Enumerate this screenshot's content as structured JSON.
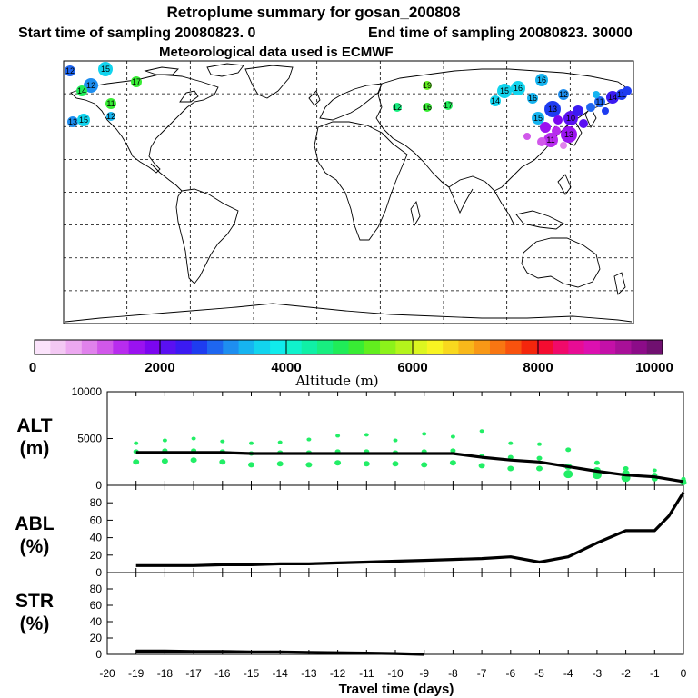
{
  "header": {
    "title": "Retroplume summary for gosan_200808",
    "subtitle_start": "Start time of sampling 20080823.    0",
    "subtitle_end": "End time of sampling 20080823. 30000",
    "met_line": "Meteorological data used is ECMWF"
  },
  "colorbar": {
    "label": "Altitude (m)",
    "tick_labels": [
      "0",
      "2000",
      "4000",
      "6000",
      "8000",
      "10000"
    ],
    "colors": [
      "#fbe3fb",
      "#f3c8f3",
      "#eca8f0",
      "#e082ec",
      "#d158ea",
      "#b82cee",
      "#9a12f0",
      "#7b06f0",
      "#5a10f2",
      "#3b1af2",
      "#1e3cf0",
      "#1e66f0",
      "#1e8ef0",
      "#16b4f0",
      "#12d4ee",
      "#10ecec",
      "#10f2cc",
      "#10f0a6",
      "#18ee80",
      "#20ec58",
      "#38ec34",
      "#62ee1e",
      "#8cf21a",
      "#b4f41c",
      "#dcf620",
      "#f8f422",
      "#f8d81e",
      "#f8b81a",
      "#f89816",
      "#f87612",
      "#f8520e",
      "#f4260c",
      "#f40c30",
      "#f00a6a",
      "#e80c94",
      "#dc10b0",
      "#c410a8",
      "#a81098",
      "#8c0c88",
      "#701070"
    ]
  },
  "map": {
    "markers": [
      "12",
      "15",
      "12",
      "17",
      "16",
      "11",
      "14",
      "12",
      "13",
      "13",
      "15",
      "15",
      "12",
      "16",
      "16",
      "14",
      "19",
      "17",
      "16",
      "12",
      "13",
      "11",
      "14",
      "12",
      "11",
      "15",
      "10"
    ]
  },
  "chart_data": {
    "type": "line",
    "xlabel": "Travel time (days)",
    "x_ticks": [
      -20,
      -19,
      -18,
      -17,
      -16,
      -15,
      -14,
      -13,
      -12,
      -11,
      -10,
      -9,
      -8,
      -7,
      -6,
      -5,
      -4,
      -3,
      -2,
      -1,
      0
    ],
    "x_tick_labels": [
      "-20",
      "-19",
      "-18",
      "-17",
      "-16",
      "-15",
      "-14",
      "-13",
      "-12",
      "-11",
      "-10",
      "-9",
      "-8",
      "-7",
      "-6",
      "-5",
      "-4",
      "-3",
      "-2",
      "-1",
      "0"
    ],
    "xlim": [
      -20,
      0
    ],
    "panels": [
      {
        "name": "ALT",
        "label_line1": "ALT",
        "label_line2": "(m)",
        "ylim": [
          0,
          10000
        ],
        "y_ticks": [
          0,
          5000,
          10000
        ],
        "y_tick_labels": [
          "0",
          "5000",
          "10000"
        ],
        "series": [
          {
            "name": "mean altitude",
            "x": [
              -19,
              -18,
              -17,
              -16,
              -15,
              -14,
              -13,
              -12,
              -11,
              -10,
              -9,
              -8,
              -7,
              -6,
              -5,
              -4,
              -3,
              -2,
              -1,
              0
            ],
            "values": [
              3500,
              3500,
              3500,
              3500,
              3400,
              3400,
              3400,
              3400,
              3400,
              3400,
              3400,
              3400,
              3000,
              2700,
              2500,
              2000,
              1500,
              1100,
              900,
              400
            ]
          }
        ],
        "clusters": {
          "x": [
            -19,
            -18,
            -17,
            -16,
            -15,
            -14,
            -13,
            -12,
            -11,
            -10,
            -9,
            -8,
            -7,
            -6,
            -5,
            -4,
            -3,
            -2,
            -1,
            0
          ],
          "values": [
            [
              2500,
              3600,
              4500
            ],
            [
              2600,
              3700,
              4800
            ],
            [
              2700,
              3700,
              5000
            ],
            [
              2500,
              3600,
              4700
            ],
            [
              2200,
              3400,
              4500
            ],
            [
              2300,
              3500,
              4600
            ],
            [
              2200,
              3500,
              4900
            ],
            [
              2400,
              3600,
              5300
            ],
            [
              2300,
              3600,
              5400
            ],
            [
              2300,
              3500,
              4800
            ],
            [
              2200,
              3600,
              5500
            ],
            [
              2400,
              3700,
              5200
            ],
            [
              2100,
              3100,
              5800
            ],
            [
              1800,
              3000,
              4500
            ],
            [
              1800,
              2900,
              4400
            ],
            [
              1200,
              2000,
              3800
            ],
            [
              1100,
              1600,
              2400
            ],
            [
              800,
              1300,
              1800
            ],
            [
              700,
              1100,
              1600
            ],
            [
              300,
              500,
              700
            ]
          ],
          "color": "#22ee66"
        }
      },
      {
        "name": "ABL",
        "label_line1": "ABL",
        "label_line2": "(%)",
        "ylim": [
          0,
          100
        ],
        "y_ticks": [
          0,
          20,
          40,
          60,
          80
        ],
        "y_tick_labels": [
          "0",
          "20",
          "40",
          "60",
          "80"
        ],
        "series": [
          {
            "name": "fraction in ABL",
            "x": [
              -19,
              -18,
              -17,
              -16,
              -15,
              -14,
              -13,
              -12,
              -11,
              -10,
              -9,
              -8,
              -7,
              -6,
              -5,
              -4,
              -3,
              -2,
              -1,
              -0.5,
              0
            ],
            "values": [
              8,
              8,
              8,
              9,
              9,
              10,
              10,
              11,
              12,
              13,
              14,
              15,
              16,
              18,
              12,
              18,
              34,
              48,
              48,
              65,
              92
            ]
          }
        ]
      },
      {
        "name": "STR",
        "label_line1": "STR",
        "label_line2": "(%)",
        "ylim": [
          0,
          100
        ],
        "y_ticks": [
          0,
          20,
          40,
          60,
          80
        ],
        "y_tick_labels": [
          "0",
          "20",
          "40",
          "60",
          "80"
        ],
        "series": [
          {
            "name": "fraction in stratosphere",
            "x": [
              -19,
              -18,
              -17,
              -16,
              -15,
              -14,
              -13,
              -12,
              -11,
              -10,
              -9
            ],
            "values": [
              4,
              4,
              3.5,
              3.5,
              3,
              3,
              2.5,
              2,
              1.5,
              1,
              0
            ]
          }
        ]
      }
    ]
  }
}
